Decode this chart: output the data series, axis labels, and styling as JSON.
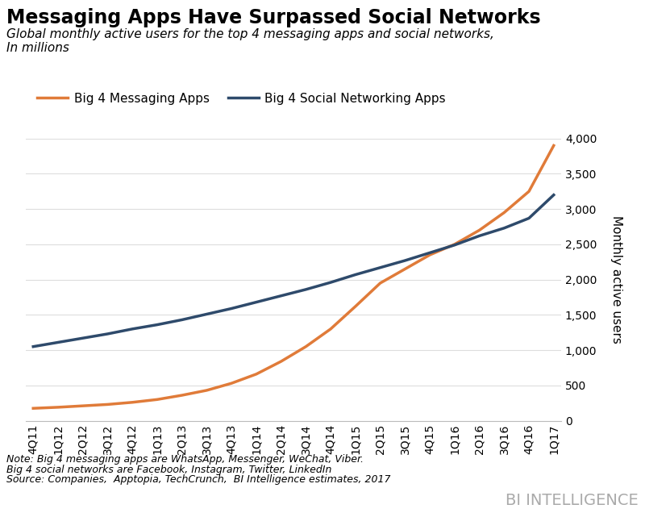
{
  "title": "Messaging Apps Have Surpassed Social Networks",
  "subtitle_line1": "Global monthly active users for the top 4 messaging apps and social networks,",
  "subtitle_line2": "In millions",
  "legend_messaging": "Big 4 Messaging Apps",
  "legend_social": "Big 4 Social Networking Apps",
  "ylabel": "Monthly active users",
  "note1": "Note: Big 4 messaging apps are WhatsApp, Messenger, WeChat, Viber.",
  "note2": "Big 4 social networks are Facebook, Instagram, Twitter, LinkedIn",
  "note3": "Source: Companies,  Apptopia, TechCrunch,  BI Intelligence estimates, 2017",
  "watermark": "BI INTELLIGENCE",
  "x_labels": [
    "4Q11",
    "1Q12",
    "2Q12",
    "3Q12",
    "4Q12",
    "1Q13",
    "2Q13",
    "3Q13",
    "4Q13",
    "1Q14",
    "2Q14",
    "3Q14",
    "4Q14",
    "1Q15",
    "2Q15",
    "3Q15",
    "4Q15",
    "1Q16",
    "2Q16",
    "3Q16",
    "4Q16",
    "1Q17"
  ],
  "messaging": [
    175,
    190,
    210,
    230,
    260,
    300,
    360,
    430,
    530,
    660,
    840,
    1050,
    1300,
    1620,
    1950,
    2150,
    2350,
    2500,
    2700,
    2950,
    3250,
    3900
  ],
  "social": [
    1050,
    1110,
    1170,
    1230,
    1300,
    1360,
    1430,
    1510,
    1590,
    1680,
    1770,
    1860,
    1960,
    2070,
    2170,
    2270,
    2380,
    2490,
    2620,
    2730,
    2870,
    3200
  ],
  "messaging_color": "#E07B39",
  "social_color": "#2E4A6B",
  "line_width": 2.5,
  "ylim": [
    0,
    4000
  ],
  "yticks": [
    0,
    500,
    1000,
    1500,
    2000,
    2500,
    3000,
    3500,
    4000
  ],
  "background_color": "#FFFFFF",
  "title_fontsize": 17,
  "subtitle_fontsize": 11,
  "legend_fontsize": 11,
  "tick_fontsize": 10,
  "note_fontsize": 9
}
